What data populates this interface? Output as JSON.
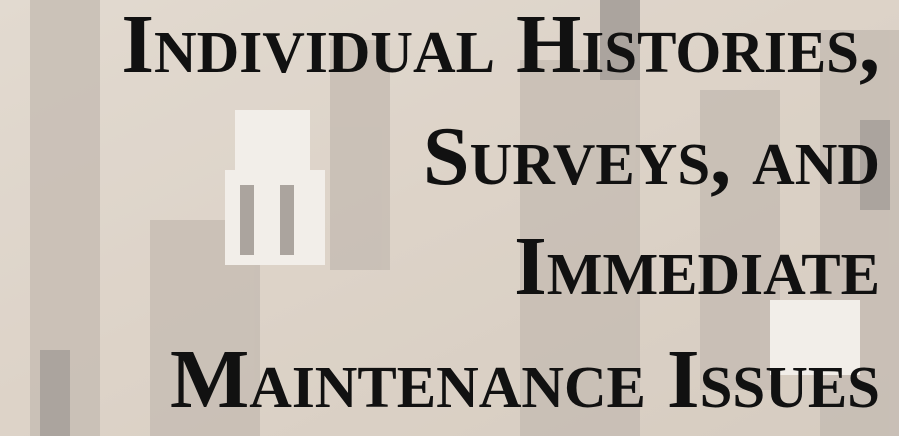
{
  "title_lines": [
    "Individual Histories,",
    "Surveys, and",
    "Immediate",
    "Maintenance Issues"
  ]
}
